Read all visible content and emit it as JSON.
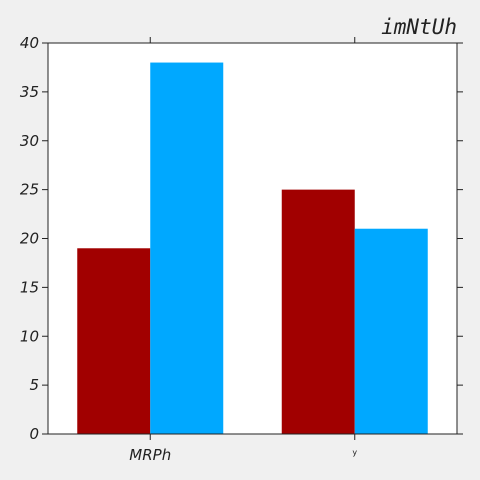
{
  "chart_data": {
    "type": "bar",
    "title": "imNtUh",
    "xlabel": "",
    "ylabel": "",
    "categories": [
      "MRPh",
      "y"
    ],
    "series": [
      {
        "values": [
          19,
          25
        ],
        "color": "#a10000"
      },
      {
        "values": [
          38,
          21
        ],
        "color": "#00a8ff"
      }
    ],
    "ylim": [
      0,
      40
    ],
    "yticks": [
      0,
      5,
      10,
      15,
      20,
      25,
      30,
      35,
      40
    ],
    "grid": false,
    "legend": "none"
  }
}
